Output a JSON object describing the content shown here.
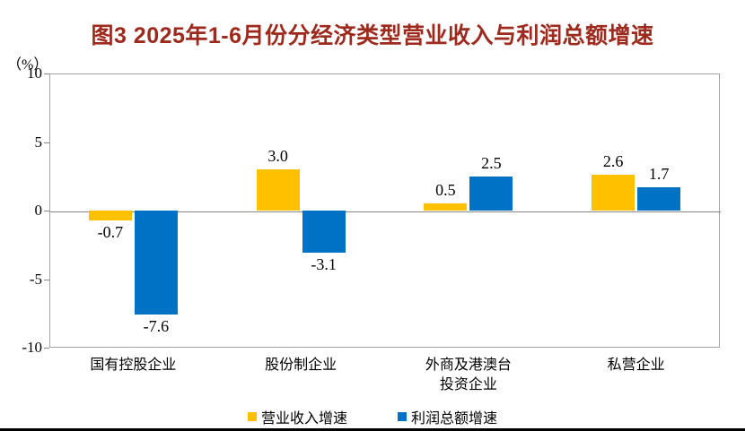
{
  "colors": {
    "title": "#9E2A1E",
    "revenue_series": "#FFC000",
    "profit_series": "#0072C6",
    "axis_border": "#A3A3A3",
    "zero_line": "#888888",
    "text": "#000000",
    "bottom_rule": "#000000"
  },
  "chart_data": {
    "type": "bar",
    "title": "图3 2025年1-6月份分经济类型营业收入与利润总额增速",
    "unit": "（%）",
    "categories": [
      "国有控股企业",
      "股份制企业",
      "外商及港澳台\n投资企业",
      "私营企业"
    ],
    "series": [
      {
        "name": "营业收入增速",
        "color": "#FFC000",
        "values": [
          -0.7,
          3.0,
          0.5,
          2.6
        ]
      },
      {
        "name": "利润总额增速",
        "color": "#0072C6",
        "values": [
          -7.6,
          -3.1,
          2.5,
          1.7
        ]
      }
    ],
    "ylim": [
      -10,
      10
    ],
    "yticks": [
      10,
      5,
      0,
      -5,
      -10
    ],
    "value_label_decimals": 1,
    "grid": false,
    "legend_position": "bottom"
  }
}
